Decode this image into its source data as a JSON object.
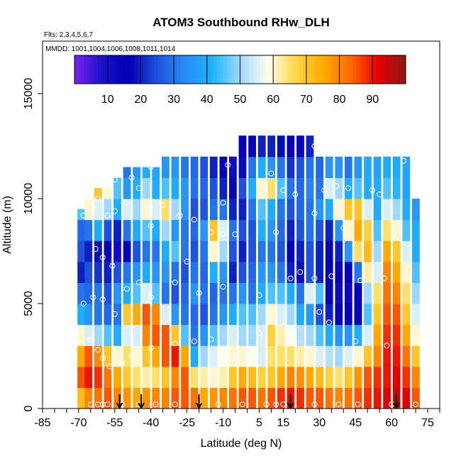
{
  "chart_data": {
    "type": "heatmap",
    "title": "ATOM3 Southbound RHw_DLH",
    "subtitle_flights": "Flts: 2,3,4,5,6,7",
    "subtitle_dates": "MMDD: 1001,1004,1006,1008,1011,1014",
    "xlabel": "Latitude (deg N)",
    "ylabel": "Altitude (m)",
    "xlim": [
      -85,
      80
    ],
    "ylim": [
      0,
      17500
    ],
    "x_tick_labels": [
      "-85",
      "-70",
      "-55",
      "-40",
      "-25",
      "-10",
      "5",
      "15",
      "30",
      "45",
      "60",
      "75"
    ],
    "y_tick_labels": [
      "0",
      "5000",
      "10000",
      "15000"
    ],
    "colorbar": {
      "range": [
        0,
        100
      ],
      "tick_labels": [
        "10",
        "20",
        "30",
        "40",
        "50",
        "60",
        "70",
        "80",
        "90"
      ],
      "colors": [
        "#7d22ee",
        "#1a10cc",
        "#0000b0",
        "#1e52dc",
        "#2a8cf4",
        "#1eb4ff",
        "#a0d8ff",
        "#fffff0",
        "#ffd84a",
        "#ffaa00",
        "#ff6a00",
        "#e60000",
        "#8c1a1a"
      ]
    },
    "altitude_levels_m": [
      500,
      1500,
      2500,
      3500,
      4500,
      5500,
      6500,
      7500,
      8500,
      9500,
      10500,
      11500,
      12500
    ],
    "columns": [
      {
        "lat": -69,
        "top": 9500,
        "rh": [
          72,
          85,
          75,
          60,
          40,
          30,
          20,
          25,
          28,
          45
        ]
      },
      {
        "lat": -66,
        "top": 10000,
        "rh": [
          80,
          90,
          85,
          55,
          35,
          28,
          25,
          20,
          30,
          60
        ]
      },
      {
        "lat": -62,
        "top": 10500,
        "rh": [
          82,
          88,
          80,
          50,
          30,
          30,
          22,
          18,
          40,
          55,
          70
        ]
      },
      {
        "lat": -58,
        "top": 10500,
        "rh": [
          85,
          82,
          70,
          45,
          28,
          25,
          20,
          15,
          25,
          50,
          60
        ]
      },
      {
        "lat": -54,
        "top": 11000,
        "rh": [
          80,
          75,
          60,
          40,
          30,
          35,
          25,
          10,
          20,
          40,
          45
        ]
      },
      {
        "lat": -50,
        "top": 11500,
        "rh": [
          78,
          70,
          65,
          55,
          70,
          40,
          30,
          15,
          30,
          55,
          35,
          30
        ]
      },
      {
        "lat": -46,
        "top": 11500,
        "rh": [
          75,
          65,
          60,
          55,
          75,
          45,
          35,
          25,
          40,
          50,
          40,
          35
        ]
      },
      {
        "lat": -42,
        "top": 11500,
        "rh": [
          78,
          62,
          70,
          80,
          85,
          55,
          40,
          30,
          45,
          60,
          50,
          40
        ]
      },
      {
        "lat": -38,
        "top": 11500,
        "rh": [
          80,
          65,
          75,
          85,
          80,
          45,
          35,
          30,
          40,
          55,
          40,
          38
        ]
      },
      {
        "lat": -34,
        "top": 12000,
        "rh": [
          80,
          70,
          85,
          85,
          55,
          30,
          35,
          40,
          50,
          65,
          45,
          35
        ]
      },
      {
        "lat": -30,
        "top": 12000,
        "rh": [
          85,
          80,
          90,
          70,
          35,
          25,
          30,
          45,
          35,
          50,
          40,
          35
        ]
      },
      {
        "lat": -26,
        "top": 12000,
        "rh": [
          85,
          85,
          75,
          45,
          30,
          28,
          25,
          30,
          30,
          35,
          35,
          30
        ]
      },
      {
        "lat": -22,
        "top": 12500,
        "rh": [
          82,
          65,
          40,
          30,
          28,
          35,
          30,
          25,
          28,
          25,
          30,
          28
        ]
      },
      {
        "lat": -18,
        "top": 12500,
        "rh": [
          75,
          62,
          50,
          35,
          25,
          30,
          28,
          30,
          35,
          25,
          28,
          25
        ]
      },
      {
        "lat": -14,
        "top": 12500,
        "rh": [
          78,
          60,
          55,
          45,
          30,
          28,
          40,
          60,
          70,
          30,
          25,
          20
        ]
      },
      {
        "lat": -10,
        "top": 12500,
        "rh": [
          80,
          62,
          58,
          50,
          35,
          30,
          35,
          50,
          55,
          30,
          20,
          15
        ]
      },
      {
        "lat": -6,
        "top": 12500,
        "rh": [
          82,
          70,
          60,
          55,
          40,
          30,
          20,
          25,
          30,
          20,
          15,
          12
        ]
      },
      {
        "lat": -2,
        "top": 13000,
        "rh": [
          85,
          75,
          60,
          50,
          45,
          35,
          25,
          20,
          25,
          20,
          25,
          18,
          15
        ]
      },
      {
        "lat": 2,
        "top": 13000,
        "rh": [
          85,
          72,
          58,
          50,
          45,
          30,
          28,
          25,
          25,
          30,
          40,
          30,
          15
        ]
      },
      {
        "lat": 6,
        "top": 13000,
        "rh": [
          82,
          68,
          55,
          55,
          50,
          40,
          35,
          30,
          40,
          45,
          60,
          40,
          20
        ]
      },
      {
        "lat": 10,
        "top": 13000,
        "rh": [
          85,
          70,
          65,
          68,
          60,
          45,
          35,
          30,
          35,
          40,
          65,
          35,
          20
        ]
      },
      {
        "lat": 14,
        "top": 13000,
        "rh": [
          88,
          75,
          65,
          62,
          55,
          45,
          30,
          25,
          28,
          30,
          45,
          30,
          18
        ]
      },
      {
        "lat": 18,
        "top": 13000,
        "rh": [
          90,
          80,
          65,
          58,
          50,
          40,
          20,
          15,
          20,
          25,
          30,
          22,
          15
        ]
      },
      {
        "lat": 22,
        "top": 13000,
        "rh": [
          88,
          78,
          62,
          52,
          40,
          30,
          18,
          20,
          25,
          28,
          28,
          25,
          15
        ]
      },
      {
        "lat": 26,
        "top": 13000,
        "rh": [
          85,
          75,
          60,
          50,
          35,
          55,
          25,
          25,
          30,
          30,
          32,
          30,
          20
        ]
      },
      {
        "lat": 30,
        "top": 12500,
        "rh": [
          85,
          72,
          55,
          45,
          25,
          45,
          20,
          20,
          25,
          35,
          30,
          28
        ]
      },
      {
        "lat": 34,
        "top": 12500,
        "rh": [
          82,
          68,
          52,
          40,
          20,
          15,
          15,
          15,
          20,
          40,
          55,
          35
        ]
      },
      {
        "lat": 38,
        "top": 12500,
        "rh": [
          80,
          65,
          50,
          35,
          15,
          12,
          15,
          20,
          35,
          60,
          50,
          35
        ]
      },
      {
        "lat": 42,
        "top": 12500,
        "rh": [
          82,
          70,
          55,
          35,
          15,
          12,
          15,
          35,
          60,
          70,
          40,
          30
        ]
      },
      {
        "lat": 46,
        "top": 12000,
        "rh": [
          85,
          78,
          60,
          40,
          15,
          15,
          30,
          65,
          75,
          70,
          45,
          35
        ]
      },
      {
        "lat": 50,
        "top": 12000,
        "rh": [
          88,
          85,
          70,
          55,
          45,
          50,
          62,
          72,
          68,
          55,
          40,
          40
        ]
      },
      {
        "lat": 54,
        "top": 12000,
        "rh": [
          90,
          88,
          80,
          75,
          70,
          65,
          55,
          50,
          45,
          40,
          40,
          38
        ]
      },
      {
        "lat": 58,
        "top": 12000,
        "rh": [
          92,
          90,
          90,
          88,
          85,
          82,
          80,
          75,
          65,
          55,
          45,
          40
        ]
      },
      {
        "lat": 62,
        "top": 12000,
        "rh": [
          95,
          92,
          90,
          88,
          85,
          80,
          75,
          70,
          60,
          50,
          42,
          40
        ]
      },
      {
        "lat": 66,
        "top": 12000,
        "rh": [
          92,
          88,
          82,
          75,
          70,
          65,
          60,
          55,
          45,
          40,
          38,
          38
        ]
      },
      {
        "lat": 70,
        "top": 10000,
        "rh": [
          85,
          80,
          70,
          60,
          55,
          50,
          45,
          40,
          40,
          35
        ]
      }
    ],
    "flight_path_points": [
      [
        -65,
        200
      ],
      [
        -62,
        200
      ],
      [
        -60,
        200
      ],
      [
        -58,
        200
      ],
      [
        -52,
        200
      ],
      [
        -45,
        200
      ],
      [
        -38,
        200
      ],
      [
        -30,
        200
      ],
      [
        -20,
        200
      ],
      [
        -12,
        200
      ],
      [
        -2,
        200
      ],
      [
        8,
        200
      ],
      [
        12,
        200
      ],
      [
        15,
        200
      ],
      [
        28,
        200
      ],
      [
        38,
        200
      ],
      [
        46,
        200
      ],
      [
        60,
        200
      ],
      [
        70,
        200
      ],
      [
        -65,
        3300
      ],
      [
        -62,
        2800
      ],
      [
        -60,
        2400
      ],
      [
        -57,
        2000
      ],
      [
        -52,
        2200
      ],
      [
        -48,
        2500
      ],
      [
        -40,
        2900
      ],
      [
        -30,
        3100
      ],
      [
        -22,
        3200
      ],
      [
        -15,
        3300
      ],
      [
        -5,
        2500
      ],
      [
        5,
        3600
      ],
      [
        15,
        3900
      ],
      [
        30,
        4600
      ],
      [
        34,
        4100
      ],
      [
        45,
        3200
      ],
      [
        58,
        3000
      ],
      [
        70,
        3200
      ],
      [
        -68,
        5000
      ],
      [
        -64,
        5300
      ],
      [
        -60,
        5200
      ],
      [
        -55,
        4500
      ],
      [
        -50,
        5700
      ],
      [
        -45,
        6000
      ],
      [
        -40,
        5300
      ],
      [
        -30,
        6000
      ],
      [
        -20,
        5500
      ],
      [
        -10,
        5800
      ],
      [
        5,
        5400
      ],
      [
        18,
        6200
      ],
      [
        22,
        6500
      ],
      [
        28,
        6200
      ],
      [
        35,
        6300
      ],
      [
        47,
        6100
      ],
      [
        57,
        6200
      ],
      [
        -63,
        7600
      ],
      [
        -60,
        7200
      ],
      [
        -56,
        6800
      ],
      [
        -40,
        8700
      ],
      [
        -25,
        7000
      ],
      [
        -15,
        8400
      ],
      [
        -10,
        8300
      ],
      [
        -5,
        8300
      ],
      [
        12,
        8400
      ],
      [
        28,
        9300
      ],
      [
        40,
        8600
      ],
      [
        -68,
        9200
      ],
      [
        -64,
        9600
      ],
      [
        -62,
        10000
      ],
      [
        -58,
        9200
      ],
      [
        -55,
        9400
      ],
      [
        -50,
        9800
      ],
      [
        -45,
        10500
      ],
      [
        -35,
        9700
      ],
      [
        -28,
        9200
      ],
      [
        -22,
        9000
      ],
      [
        -10,
        9800
      ],
      [
        5,
        10300
      ],
      [
        15,
        10400
      ],
      [
        20,
        10200
      ],
      [
        32,
        10400
      ],
      [
        37,
        10600
      ],
      [
        42,
        10500
      ],
      [
        52,
        10400
      ],
      [
        55,
        10200
      ],
      [
        -60,
        10700
      ],
      [
        -55,
        10900
      ],
      [
        -48,
        11000
      ],
      [
        -40,
        11500
      ],
      [
        -20,
        12600
      ],
      [
        -8,
        11600
      ],
      [
        10,
        11200
      ],
      [
        28,
        12500
      ],
      [
        65,
        11800
      ]
    ],
    "flight_path_markers": [
      -53,
      -44,
      -20,
      18,
      62
    ]
  }
}
